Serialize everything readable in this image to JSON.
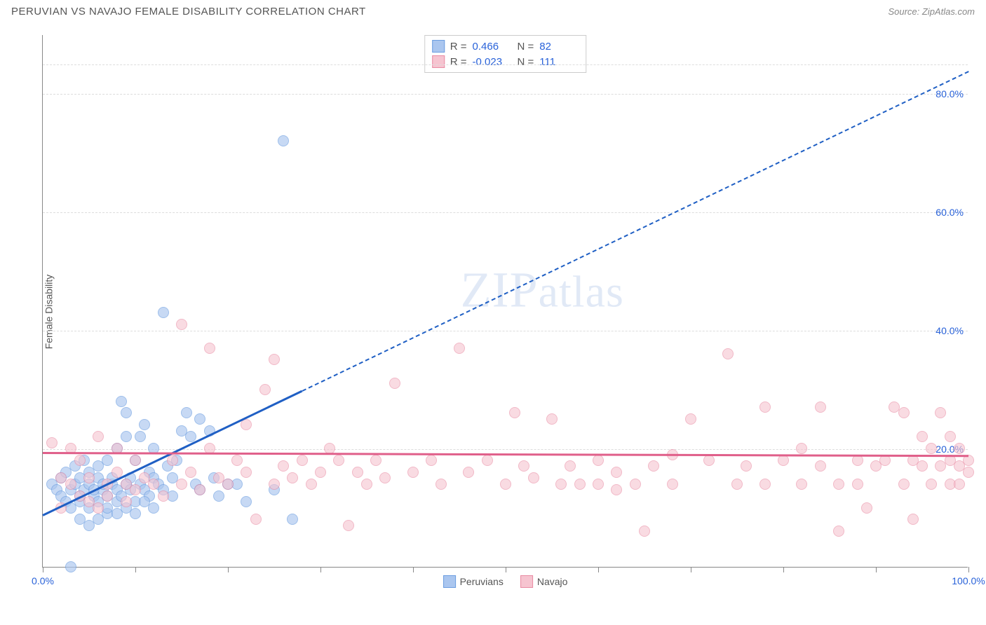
{
  "header": {
    "title": "PERUVIAN VS NAVAJO FEMALE DISABILITY CORRELATION CHART",
    "source_label": "Source: ZipAtlas.com"
  },
  "y_axis_label": "Female Disability",
  "watermark": "ZIPatlas",
  "chart": {
    "type": "scatter",
    "xlim": [
      0,
      100
    ],
    "ylim": [
      0,
      90
    ],
    "x_ticks": [
      0,
      10,
      20,
      30,
      40,
      50,
      60,
      70,
      80,
      90,
      100
    ],
    "x_tick_labels": {
      "0": "0.0%",
      "100": "100.0%"
    },
    "y_gridlines": [
      20,
      40,
      60,
      80,
      85
    ],
    "y_tick_labels": {
      "20": "20.0%",
      "40": "40.0%",
      "60": "60.0%",
      "80": "80.0%"
    },
    "background_color": "#ffffff",
    "grid_color": "#dddddd",
    "axis_color": "#888888",
    "tick_label_color": "#2962d9",
    "series": [
      {
        "name": "Peruvians",
        "marker_fill": "#aac6ef",
        "marker_stroke": "#6b9de0",
        "marker_opacity": 0.65,
        "marker_size": 16,
        "trend_color": "#1f5fc4",
        "trend_solid_range": [
          0,
          28
        ],
        "trend_dashed_range": [
          28,
          100
        ],
        "trend_y_at_x0": 9,
        "trend_slope": 0.75,
        "R": "0.466",
        "N": "82",
        "points": [
          [
            1,
            14
          ],
          [
            1.5,
            13
          ],
          [
            2,
            12
          ],
          [
            2,
            15
          ],
          [
            2.5,
            11
          ],
          [
            2.5,
            16
          ],
          [
            3,
            13
          ],
          [
            3,
            10
          ],
          [
            3.5,
            14
          ],
          [
            3.5,
            17
          ],
          [
            4,
            12
          ],
          [
            4,
            15
          ],
          [
            4,
            11
          ],
          [
            4.5,
            13
          ],
          [
            4.5,
            18
          ],
          [
            5,
            14
          ],
          [
            5,
            10
          ],
          [
            5,
            16
          ],
          [
            5.5,
            12
          ],
          [
            5.5,
            13
          ],
          [
            6,
            15
          ],
          [
            6,
            11
          ],
          [
            6,
            17
          ],
          [
            6.5,
            13
          ],
          [
            6.5,
            14
          ],
          [
            7,
            12
          ],
          [
            7,
            18
          ],
          [
            7,
            9
          ],
          [
            7.5,
            14
          ],
          [
            7.5,
            15
          ],
          [
            8,
            13
          ],
          [
            8,
            11
          ],
          [
            8,
            20
          ],
          [
            8.5,
            28
          ],
          [
            8.5,
            12
          ],
          [
            9,
            22
          ],
          [
            9,
            14
          ],
          [
            9,
            26
          ],
          [
            9.5,
            15
          ],
          [
            9.5,
            13
          ],
          [
            10,
            18
          ],
          [
            10,
            11
          ],
          [
            10.5,
            14
          ],
          [
            10.5,
            22
          ],
          [
            11,
            24
          ],
          [
            11,
            13
          ],
          [
            11.5,
            16
          ],
          [
            11.5,
            12
          ],
          [
            12,
            15
          ],
          [
            12,
            20
          ],
          [
            12.5,
            14
          ],
          [
            13,
            13
          ],
          [
            13,
            43
          ],
          [
            13.5,
            17
          ],
          [
            14,
            15
          ],
          [
            14,
            12
          ],
          [
            14.5,
            18
          ],
          [
            15,
            23
          ],
          [
            15.5,
            26
          ],
          [
            16,
            22
          ],
          [
            16.5,
            14
          ],
          [
            17,
            13
          ],
          [
            17,
            25
          ],
          [
            18,
            23
          ],
          [
            18.5,
            15
          ],
          [
            19,
            12
          ],
          [
            20,
            14
          ],
          [
            3,
            0
          ],
          [
            4,
            8
          ],
          [
            5,
            7
          ],
          [
            6,
            8
          ],
          [
            7,
            10
          ],
          [
            8,
            9
          ],
          [
            9,
            10
          ],
          [
            10,
            9
          ],
          [
            11,
            11
          ],
          [
            12,
            10
          ],
          [
            26,
            72
          ],
          [
            27,
            8
          ],
          [
            25,
            13
          ],
          [
            21,
            14
          ],
          [
            22,
            11
          ]
        ]
      },
      {
        "name": "Navajo",
        "marker_fill": "#f6c4d0",
        "marker_stroke": "#e98ba3",
        "marker_opacity": 0.6,
        "marker_size": 16,
        "trend_color": "#e05f8a",
        "trend_solid_range": [
          0,
          100
        ],
        "trend_y_at_x0": 19.5,
        "trend_slope": -0.005,
        "R": "-0.023",
        "N": "111",
        "points": [
          [
            1,
            21
          ],
          [
            2,
            15
          ],
          [
            2,
            10
          ],
          [
            3,
            14
          ],
          [
            3,
            20
          ],
          [
            4,
            12
          ],
          [
            4,
            18
          ],
          [
            5,
            15
          ],
          [
            5,
            11
          ],
          [
            6,
            22
          ],
          [
            6,
            10
          ],
          [
            7,
            14
          ],
          [
            7,
            12
          ],
          [
            8,
            16
          ],
          [
            8,
            20
          ],
          [
            9,
            14
          ],
          [
            9,
            11
          ],
          [
            10,
            18
          ],
          [
            10,
            13
          ],
          [
            11,
            15
          ],
          [
            12,
            14
          ],
          [
            13,
            12
          ],
          [
            14,
            18
          ],
          [
            15,
            14
          ],
          [
            15,
            41
          ],
          [
            16,
            16
          ],
          [
            17,
            13
          ],
          [
            18,
            20
          ],
          [
            18,
            37
          ],
          [
            19,
            15
          ],
          [
            20,
            14
          ],
          [
            21,
            18
          ],
          [
            22,
            16
          ],
          [
            22,
            24
          ],
          [
            23,
            8
          ],
          [
            24,
            30
          ],
          [
            25,
            35
          ],
          [
            25,
            14
          ],
          [
            26,
            17
          ],
          [
            27,
            15
          ],
          [
            28,
            18
          ],
          [
            29,
            14
          ],
          [
            30,
            16
          ],
          [
            31,
            20
          ],
          [
            32,
            18
          ],
          [
            33,
            7
          ],
          [
            34,
            16
          ],
          [
            35,
            14
          ],
          [
            36,
            18
          ],
          [
            37,
            15
          ],
          [
            38,
            31
          ],
          [
            40,
            16
          ],
          [
            42,
            18
          ],
          [
            43,
            14
          ],
          [
            45,
            37
          ],
          [
            46,
            16
          ],
          [
            48,
            18
          ],
          [
            50,
            14
          ],
          [
            51,
            26
          ],
          [
            52,
            17
          ],
          [
            53,
            15
          ],
          [
            55,
            25
          ],
          [
            56,
            14
          ],
          [
            57,
            17
          ],
          [
            58,
            14
          ],
          [
            60,
            18
          ],
          [
            60,
            14
          ],
          [
            62,
            16
          ],
          [
            62,
            13
          ],
          [
            64,
            14
          ],
          [
            65,
            6
          ],
          [
            66,
            17
          ],
          [
            68,
            14
          ],
          [
            68,
            19
          ],
          [
            70,
            25
          ],
          [
            72,
            18
          ],
          [
            74,
            36
          ],
          [
            75,
            14
          ],
          [
            76,
            17
          ],
          [
            78,
            14
          ],
          [
            78,
            27
          ],
          [
            80,
            18
          ],
          [
            82,
            14
          ],
          [
            82,
            20
          ],
          [
            84,
            17
          ],
          [
            84,
            27
          ],
          [
            86,
            14
          ],
          [
            86,
            6
          ],
          [
            88,
            14
          ],
          [
            88,
            18
          ],
          [
            89,
            10
          ],
          [
            90,
            17
          ],
          [
            91,
            18
          ],
          [
            92,
            27
          ],
          [
            93,
            14
          ],
          [
            93,
            26
          ],
          [
            94,
            18
          ],
          [
            94,
            8
          ],
          [
            95,
            17
          ],
          [
            95,
            22
          ],
          [
            96,
            14
          ],
          [
            96,
            20
          ],
          [
            97,
            17
          ],
          [
            97,
            26
          ],
          [
            98,
            14
          ],
          [
            98,
            18
          ],
          [
            98,
            22
          ],
          [
            99,
            17
          ],
          [
            99,
            14
          ],
          [
            99,
            20
          ],
          [
            100,
            18
          ],
          [
            100,
            16
          ]
        ]
      }
    ]
  },
  "stats_box": {
    "r_label": "R =",
    "n_label": "N ="
  },
  "legend": {
    "items": [
      "Peruvians",
      "Navajo"
    ]
  }
}
